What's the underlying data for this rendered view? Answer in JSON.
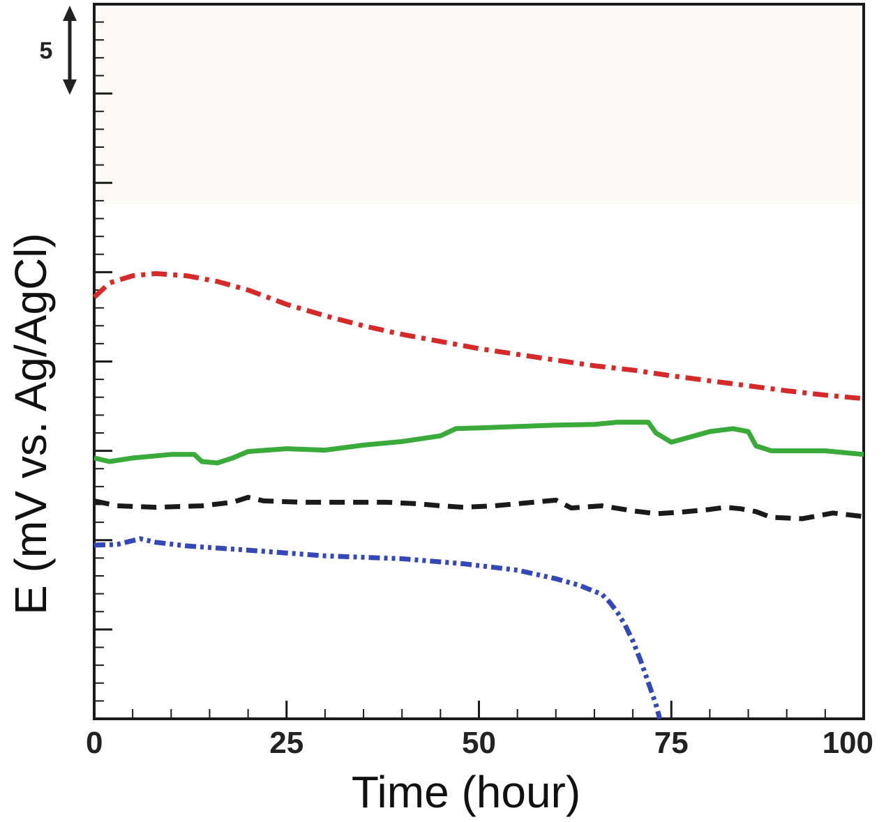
{
  "chart_data": {
    "type": "line",
    "title": "",
    "xlabel": "Time (hour)",
    "ylabel": "E (mV vs. Ag/AgCl)",
    "xlim": [
      0,
      100
    ],
    "ylim": [
      0,
      100
    ],
    "x_ticks": [
      0,
      25,
      50,
      75,
      100
    ],
    "x_tick_labels": [
      "0",
      "25",
      "50",
      "75",
      "100"
    ],
    "y_tick_labels_shown": false,
    "scale_bar_label": "5",
    "grid": false,
    "legend": "none",
    "series": [
      {
        "color": "#d62a2a",
        "dash": "dash-dot",
        "x": [
          0,
          2,
          5,
          8,
          12,
          16,
          20,
          25,
          30,
          35,
          40,
          45,
          50,
          55,
          60,
          65,
          70,
          75,
          80,
          85,
          90,
          95,
          100
        ],
        "y": [
          59,
          61,
          62,
          62.3,
          62,
          61.2,
          60,
          58,
          56.4,
          55,
          53.8,
          52.8,
          51.8,
          51,
          50.2,
          49.4,
          48.8,
          48,
          47.3,
          46.6,
          45.9,
          45.3,
          44.8
        ]
      },
      {
        "color": "#3aaa3a",
        "dash": "solid",
        "x": [
          0,
          2,
          5,
          10,
          13,
          14,
          16,
          18,
          20,
          25,
          30,
          35,
          40,
          45,
          47,
          50,
          55,
          60,
          65,
          68,
          72,
          73,
          75,
          80,
          83,
          85,
          86,
          88,
          95,
          100
        ],
        "y": [
          36.5,
          36,
          36.5,
          37,
          37,
          36,
          35.8,
          36.5,
          37.4,
          37.8,
          37.6,
          38.3,
          38.8,
          39.6,
          40.6,
          40.7,
          40.9,
          41.1,
          41.2,
          41.5,
          41.5,
          40,
          38.7,
          40.2,
          40.6,
          40.2,
          38.2,
          37.5,
          37.5,
          37
        ]
      },
      {
        "color": "#1a1a1a",
        "dash": "dash",
        "x": [
          0,
          3,
          8,
          14,
          18,
          20,
          22,
          27,
          32,
          38,
          42,
          45,
          48,
          52,
          56,
          59,
          60,
          62,
          66,
          70,
          73,
          76,
          80,
          82,
          84,
          86,
          88,
          92,
          94,
          96,
          100
        ],
        "y": [
          30.5,
          29.8,
          29.6,
          29.8,
          30.3,
          31.0,
          30.5,
          30.3,
          30.3,
          30.3,
          30.1,
          29.8,
          29.6,
          29.8,
          30.2,
          30.5,
          30.6,
          29.5,
          29.8,
          29.1,
          28.7,
          28.9,
          29.3,
          29.6,
          29.4,
          29.0,
          28.2,
          28.0,
          28.4,
          28.8,
          28.3
        ]
      },
      {
        "color": "#3548b8",
        "dash": "dash-dot-dot",
        "x": [
          0,
          3,
          6,
          8,
          12,
          20,
          30,
          40,
          48,
          55,
          60,
          63,
          66,
          67,
          68,
          69,
          70,
          71,
          72,
          73,
          73.5
        ],
        "y": [
          24.3,
          24.4,
          25.2,
          24.7,
          24.2,
          23.6,
          22.8,
          22.4,
          21.7,
          20.8,
          19.6,
          18.7,
          17.4,
          16.3,
          14.9,
          13.1,
          10.9,
          8.2,
          5.1,
          2.0,
          0
        ]
      }
    ]
  }
}
